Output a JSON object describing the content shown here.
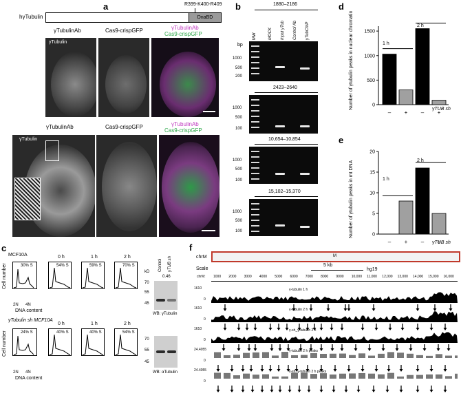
{
  "panels": {
    "a": {
      "label": "a",
      "protein": "hγTubulin",
      "mutation": "R399-K400-R409",
      "domain_box": "DnaBD",
      "top_row_labels": [
        "γTubulinAb",
        "Cas9-crispGFP",
        "γTubulinAb",
        "Cas9-crispGFP"
      ],
      "top_inset_label": "γTubulin",
      "bottom_row_labels": [
        "γTubulinAb",
        "Cas9-crispGFP",
        "γTubulinAb",
        "Cas9-crispGFP"
      ],
      "bottom_inset_label": "γTubulin"
    },
    "b": {
      "label": "b",
      "region_1": "1880–2186",
      "region_2": "2423–2640",
      "region_3": "10,654–10,854",
      "region_4": "15,102–15,370",
      "lanes": [
        "MW",
        "MOCK",
        "Input γTub",
        "Control Ab",
        "γTubChIP"
      ],
      "bp_label": "bp",
      "gel1_ticks": [
        "1000",
        "500",
        "200"
      ],
      "gel2_ticks": [
        "1000",
        "500",
        "100"
      ],
      "gel3_ticks": [
        "1000",
        "500",
        "100"
      ],
      "gel4_ticks": [
        "1000",
        "500",
        "100"
      ]
    },
    "c": {
      "label": "c",
      "row1_title": "MCF10A",
      "row2_title": "γTubulin sh MCF10A",
      "ylabel": "Cell number",
      "xlabel": "DNA content",
      "peak_labels": [
        "2N",
        "4N"
      ],
      "s_label": "S",
      "row1": [
        {
          "time": "",
          "s": "30% S"
        },
        {
          "time": "0 h",
          "s": "54% S"
        },
        {
          "time": "1 h",
          "s": "59% S"
        },
        {
          "time": "2 h",
          "s": "70% S"
        }
      ],
      "row2": [
        {
          "time": "",
          "s": "24% S"
        },
        {
          "time": "0 h",
          "s": "40% S"
        },
        {
          "time": "1 h",
          "s": "40% S"
        },
        {
          "time": "2 h",
          "s": "54% S"
        }
      ],
      "wb_cols": [
        "Control",
        "γTUB sh"
      ],
      "wb_ratio": "0.46",
      "kd_label": "kD",
      "wb1_kd": [
        "70",
        "55",
        "45"
      ],
      "wb1_label": "WB: γTubulin",
      "wb2_kd": [
        "70",
        "55",
        "45"
      ],
      "wb2_label": "WB: αTubulin"
    },
    "d": {
      "label": "d",
      "ylabel": "Number of γtubulin peaks in nuclear chromatin",
      "groups": [
        "1 h",
        "2 h"
      ],
      "sh_label": "γTUB sh",
      "xticks": [
        "–",
        "+",
        "–",
        "+"
      ]
    },
    "e": {
      "label": "e",
      "ylabel": "Number of γtubulin peaks in mt DNA",
      "groups": [
        "1 h",
        "2 h"
      ],
      "sh_label": "γTUB sh",
      "xticks": [
        "–",
        "+",
        "–",
        "+"
      ]
    },
    "f": {
      "label": "f",
      "chr": "chrM",
      "ideogram_letter": "M",
      "scale_label": "Scale",
      "scale_bar": "5 kb",
      "assembly": "hg19",
      "chr_tick_prefix": "chrM:",
      "coords": [
        "1000",
        "2000",
        "3000",
        "4000",
        "5000",
        "6000",
        "7000",
        "8000",
        "9000",
        "10,000",
        "11,000",
        "12,000",
        "13,000",
        "14,000",
        "15,000",
        "16,000"
      ],
      "tracks": [
        {
          "max": "1610",
          "min": "0",
          "name": "γ-tubulin 1 h"
        },
        {
          "max": "1610",
          "min": "0",
          "name": "γ-tubulin 2 h"
        },
        {
          "max": "1610",
          "min": "0",
          "name": "γ-sh_γ-tubulin 2 h"
        },
        {
          "max": "24.4055",
          "min": "0",
          "name": "γ-tubulin 2 h peaks"
        },
        {
          "max": "24.4055",
          "min": "0",
          "name": "γ-sh_γ-tubulin 2 h peaks"
        }
      ]
    }
  },
  "chart_data": [
    {
      "type": "bar",
      "panel": "d",
      "ylabel": "Number of γtubulin peaks in nuclear chromatin",
      "categories": [
        "1 h –",
        "1 h +",
        "2 h –",
        "2 h +"
      ],
      "values": [
        1030,
        300,
        1550,
        90
      ],
      "colors": [
        "#000000",
        "#a0a0a0",
        "#000000",
        "#a0a0a0"
      ],
      "yticks": [
        0,
        500,
        1000,
        1500
      ],
      "ylim": [
        0,
        1600
      ]
    },
    {
      "type": "bar",
      "panel": "e",
      "ylabel": "Number of γtubulin peaks in mt DNA",
      "categories": [
        "1 h –",
        "1 h +",
        "2 h –",
        "2 h +"
      ],
      "values": [
        0,
        8,
        16,
        5
      ],
      "colors": [
        "#000000",
        "#a0a0a0",
        "#000000",
        "#a0a0a0"
      ],
      "yticks": [
        0,
        5,
        10,
        15,
        20
      ],
      "ylim": [
        0,
        20
      ]
    }
  ]
}
